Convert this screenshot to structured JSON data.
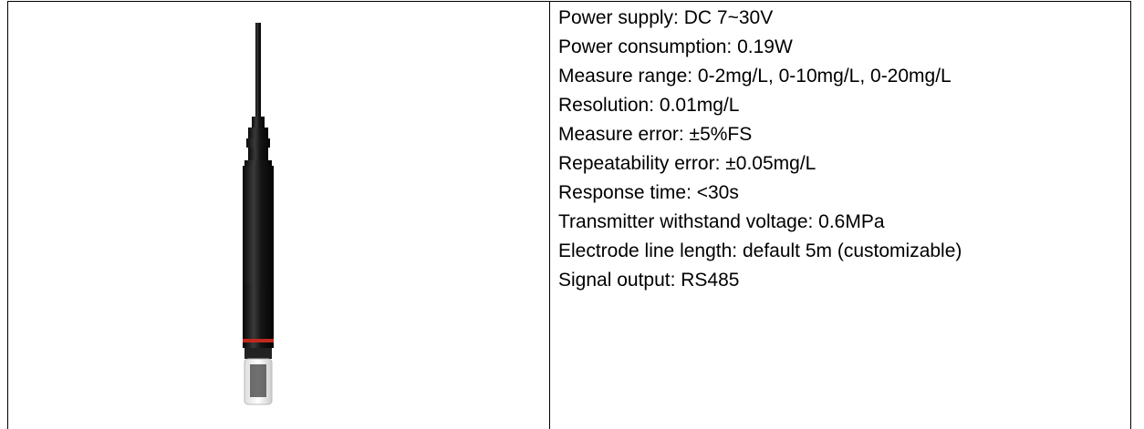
{
  "specs": [
    "Power supply: DC 7~30V",
    "Power consumption: 0.19W",
    "Measure range: 0-2mg/L, 0-10mg/L, 0-20mg/L",
    "Resolution: 0.01mg/L",
    "Measure error: ±5%FS",
    "Repeatability error: ±0.05mg/L",
    "Response time: <30s",
    "Transmitter withstand voltage: 0.6MPa",
    "Electrode line length: default 5m (customizable)",
    "Signal output: RS485"
  ]
}
